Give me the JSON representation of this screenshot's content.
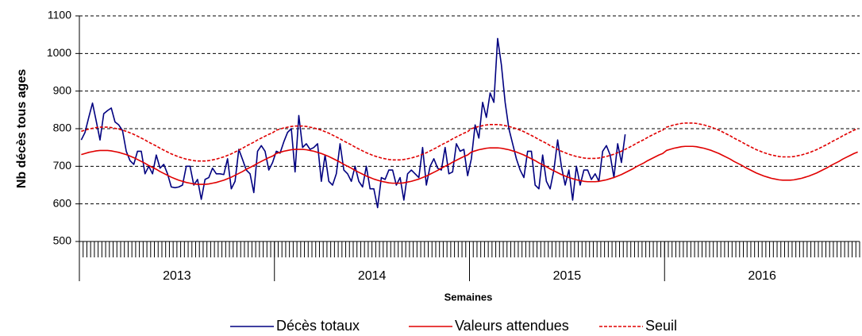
{
  "chart_data": {
    "type": "line",
    "ylabel": "Nb décès tous ages",
    "xlabel": "Semaines",
    "x_groups": [
      "2013",
      "2014",
      "2015",
      "2016"
    ],
    "categories": [
      null,
      null,
      null,
      null,
      null,
      null,
      null,
      null,
      null,
      null,
      null,
      null,
      null,
      null,
      null,
      null,
      null,
      null,
      null,
      null,
      null,
      null,
      null,
      null,
      null,
      null,
      null,
      null,
      null,
      null,
      null,
      null,
      null,
      null,
      null,
      null,
      null,
      null,
      null,
      null,
      null,
      null,
      null,
      null,
      null,
      null,
      null,
      null,
      null,
      null,
      null,
      null,
      null,
      null,
      null,
      null,
      null,
      null,
      null,
      null,
      null,
      null,
      null,
      null,
      null,
      null,
      null,
      null,
      null,
      null,
      null,
      null,
      null,
      null,
      null,
      null,
      null,
      null,
      null,
      null,
      null,
      null,
      null,
      null,
      null,
      null,
      null,
      null,
      null,
      null,
      null,
      null,
      null,
      null,
      null,
      null,
      null,
      null,
      null,
      null,
      null,
      null,
      null,
      null,
      null,
      null,
      null,
      null,
      null,
      null,
      null,
      null,
      null,
      null,
      null,
      null,
      null,
      null,
      null,
      null,
      null,
      null,
      null,
      null,
      null,
      null,
      null,
      null,
      null,
      null,
      null,
      null,
      null,
      null,
      null,
      null,
      null,
      null,
      null,
      null,
      null,
      null,
      null,
      null,
      null,
      null,
      null,
      null,
      null,
      null,
      null,
      null,
      null,
      null,
      null,
      null,
      null,
      null,
      null,
      null,
      null,
      null,
      null,
      null,
      null,
      null,
      null,
      null,
      null,
      null,
      null,
      null,
      null,
      null,
      null,
      null,
      null,
      null,
      null,
      null,
      null,
      null,
      null,
      null,
      null,
      null,
      null,
      null,
      null,
      null,
      null,
      null,
      null,
      null,
      null,
      null,
      null,
      null,
      null,
      null,
      null,
      null,
      null,
      null,
      null,
      null,
      null,
      null
    ],
    "ylim": [
      500,
      1100
    ],
    "yticks": [
      500,
      600,
      700,
      800,
      900,
      1000,
      1100
    ],
    "grid": true,
    "legend": "bottom",
    "series": [
      {
        "name": "Décès totaux",
        "color": "#000080",
        "line_style": "solid",
        "values": [
          770,
          790,
          830,
          868,
          820,
          770,
          840,
          848,
          855,
          818,
          810,
          795,
          740,
          715,
          705,
          740,
          740,
          680,
          700,
          680,
          730,
          695,
          705,
          680,
          645,
          643,
          645,
          650,
          700,
          700,
          650,
          665,
          612,
          665,
          670,
          695,
          680,
          680,
          678,
          720,
          640,
          660,
          745,
          718,
          690,
          680,
          630,
          740,
          755,
          740,
          690,
          710,
          740,
          735,
          765,
          790,
          800,
          685,
          835,
          750,
          760,
          745,
          750,
          760,
          660,
          730,
          660,
          650,
          680,
          760,
          690,
          680,
          660,
          700,
          660,
          645,
          700,
          640,
          640,
          590,
          670,
          665,
          690,
          690,
          650,
          670,
          610,
          680,
          690,
          680,
          670,
          750,
          650,
          700,
          720,
          695,
          690,
          750,
          680,
          685,
          760,
          740,
          745,
          675,
          720,
          810,
          775,
          870,
          830,
          895,
          870,
          1040,
          970,
          870,
          800,
          760,
          720,
          690,
          670,
          740,
          740,
          650,
          640,
          730,
          660,
          640,
          690,
          770,
          700,
          650,
          690,
          610,
          700,
          650,
          690,
          690,
          665,
          680,
          660,
          740,
          755,
          730,
          670,
          760,
          710,
          785,
          null,
          null,
          null,
          null,
          null,
          null,
          null,
          null,
          null,
          null,
          null,
          null,
          null,
          null,
          null,
          null,
          null,
          null,
          null,
          null,
          null,
          null,
          null,
          null,
          null,
          null,
          null,
          null,
          null,
          null,
          null,
          null,
          null,
          null,
          null,
          null,
          null,
          null,
          null,
          null,
          null,
          null,
          null,
          null,
          null,
          null,
          null,
          null,
          null,
          null,
          null,
          null,
          null,
          null,
          null,
          null,
          null,
          null,
          null,
          null,
          null,
          null
        ]
      },
      {
        "name": "Valeurs attendues",
        "color": "#e00000",
        "line_style": "solid",
        "values": [
          731,
          734,
          737,
          739,
          741,
          742,
          742,
          742,
          741,
          739,
          737,
          734,
          731,
          727,
          723,
          718,
          713,
          708,
          702,
          697,
          692,
          686,
          681,
          676,
          671,
          667,
          663,
          660,
          657,
          655,
          653,
          652,
          652,
          652,
          653,
          655,
          657,
          660,
          663,
          667,
          671,
          676,
          681,
          686,
          692,
          697,
          702,
          708,
          713,
          718,
          723,
          727,
          734,
          737,
          740,
          742,
          744,
          745,
          745,
          745,
          744,
          742,
          740,
          737,
          734,
          730,
          726,
          721,
          716,
          711,
          705,
          700,
          695,
          689,
          684,
          679,
          674,
          670,
          666,
          663,
          660,
          658,
          656,
          655,
          655,
          655,
          656,
          658,
          660,
          663,
          666,
          670,
          674,
          679,
          684,
          689,
          695,
          700,
          705,
          711,
          716,
          721,
          726,
          730,
          738,
          741,
          744,
          746,
          748,
          749,
          749,
          749,
          748,
          746,
          744,
          741,
          738,
          734,
          730,
          725,
          720,
          715,
          709,
          704,
          699,
          693,
          688,
          683,
          678,
          674,
          670,
          667,
          664,
          662,
          660,
          659,
          659,
          659,
          660,
          662,
          664,
          667,
          670,
          674,
          678,
          683,
          688,
          693,
          699,
          704,
          709,
          715,
          720,
          725,
          730,
          734,
          742,
          745,
          748,
          750,
          752,
          753,
          753,
          753,
          752,
          750,
          748,
          745,
          742,
          738,
          734,
          729,
          724,
          719,
          713,
          708,
          703,
          697,
          692,
          687,
          682,
          678,
          674,
          671,
          668,
          666,
          664,
          663,
          663,
          663,
          664,
          666,
          668,
          671,
          674,
          678,
          682,
          687,
          692,
          697,
          703,
          708,
          713,
          719,
          724,
          729,
          734,
          738
        ]
      },
      {
        "name": "Seuil",
        "color": "#e00000",
        "line_style": "dashed",
        "values": [
          793,
          796,
          799,
          801,
          803,
          804,
          804,
          804,
          803,
          801,
          799,
          796,
          793,
          789,
          785,
          780,
          775,
          770,
          764,
          759,
          754,
          748,
          743,
          738,
          733,
          729,
          725,
          722,
          719,
          717,
          715,
          714,
          714,
          714,
          715,
          717,
          719,
          722,
          725,
          729,
          733,
          738,
          743,
          748,
          754,
          759,
          764,
          770,
          775,
          780,
          785,
          789,
          796,
          799,
          802,
          804,
          806,
          807,
          807,
          807,
          806,
          804,
          802,
          799,
          796,
          792,
          788,
          783,
          778,
          773,
          767,
          762,
          757,
          751,
          746,
          741,
          736,
          732,
          728,
          725,
          722,
          720,
          718,
          717,
          717,
          717,
          718,
          720,
          722,
          725,
          728,
          732,
          736,
          741,
          746,
          751,
          757,
          762,
          767,
          773,
          778,
          783,
          788,
          792,
          800,
          803,
          806,
          808,
          810,
          811,
          811,
          811,
          810,
          808,
          806,
          803,
          800,
          796,
          792,
          787,
          782,
          777,
          771,
          766,
          761,
          755,
          750,
          745,
          740,
          736,
          732,
          729,
          726,
          724,
          722,
          721,
          721,
          721,
          722,
          724,
          726,
          729,
          732,
          736,
          740,
          745,
          750,
          755,
          761,
          766,
          771,
          777,
          782,
          787,
          792,
          796,
          804,
          807,
          810,
          812,
          814,
          815,
          815,
          815,
          814,
          812,
          810,
          807,
          804,
          800,
          796,
          791,
          786,
          781,
          775,
          770,
          765,
          759,
          754,
          749,
          744,
          740,
          736,
          733,
          730,
          728,
          726,
          725,
          725,
          725,
          726,
          728,
          730,
          733,
          736,
          740,
          744,
          749,
          754,
          759,
          765,
          770,
          775,
          781,
          786,
          791,
          796,
          800
        ]
      }
    ]
  }
}
